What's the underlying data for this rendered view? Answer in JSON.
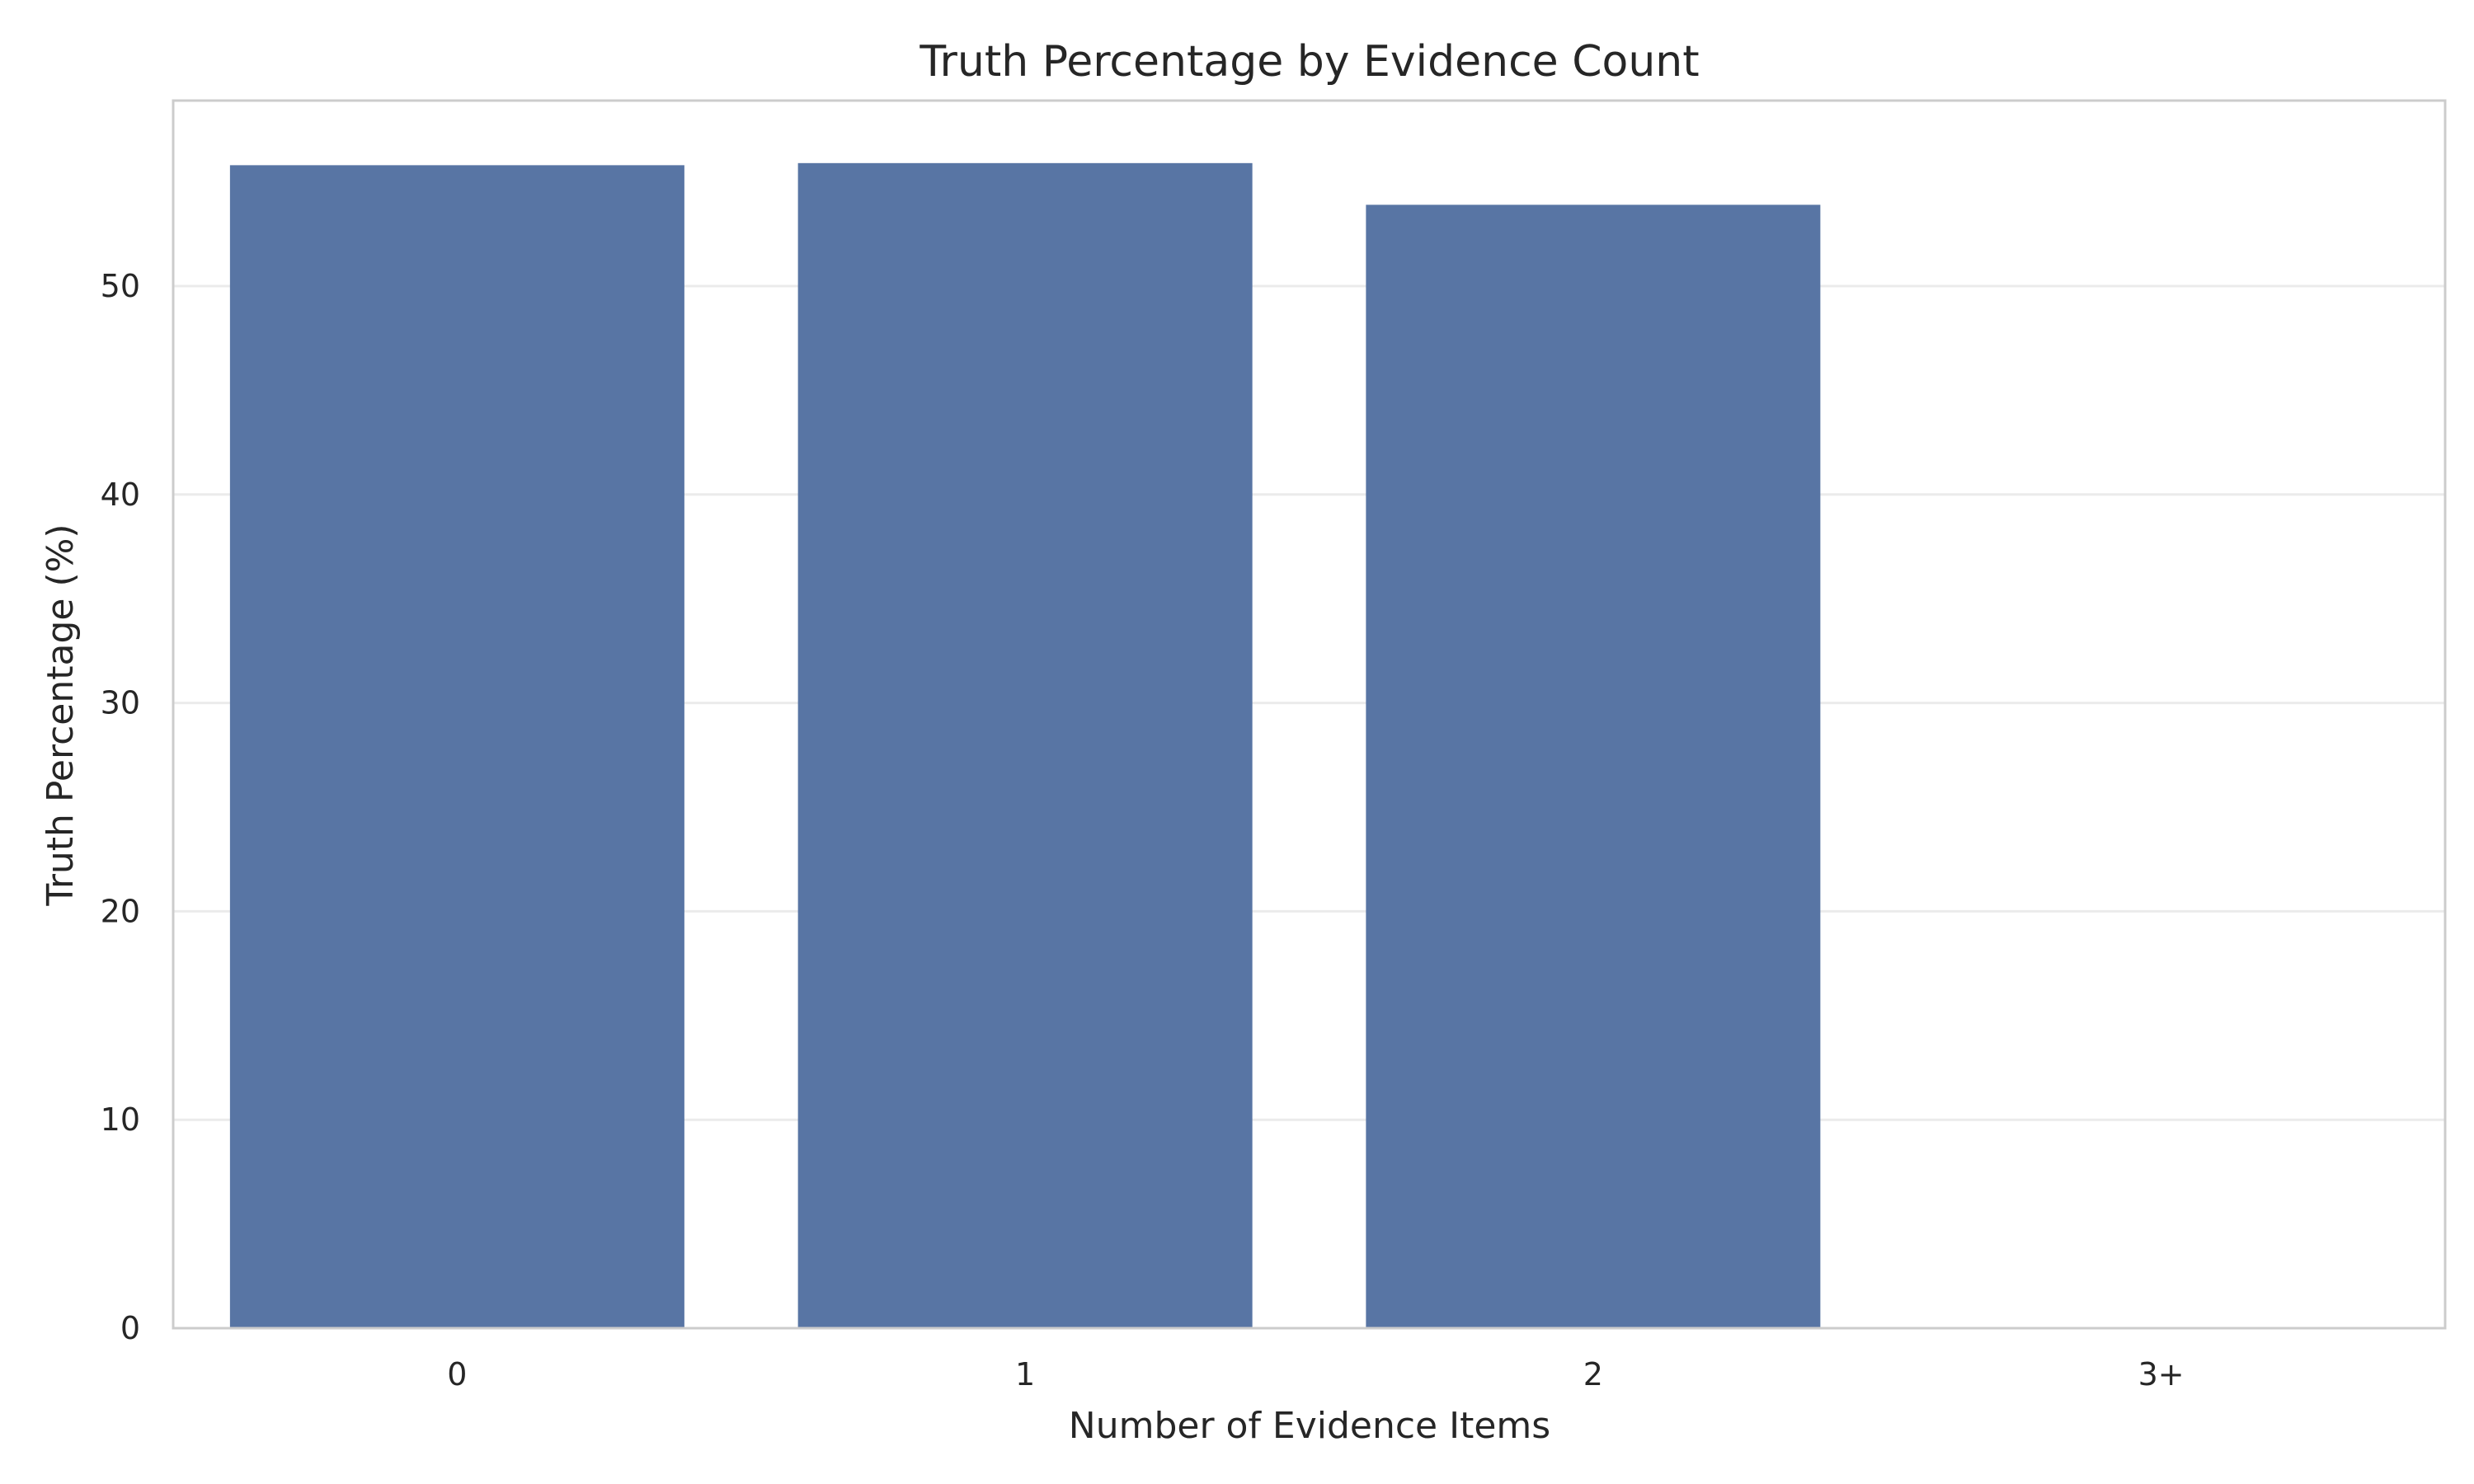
{
  "chart_data": {
    "type": "bar",
    "title": "Truth Percentage by Evidence Count",
    "xlabel": "Number of Evidence Items",
    "ylabel": "Truth Percentage (%)",
    "categories": [
      "0",
      "1",
      "2",
      "3+"
    ],
    "values": [
      55.8,
      55.9,
      53.9,
      0
    ],
    "ylim": [
      0,
      58.9
    ],
    "yticks": [
      "0",
      "10",
      "20",
      "30",
      "40",
      "50"
    ],
    "grid": "horizontal",
    "legend": "none",
    "colors": {
      "bar": "#5875a4",
      "grid": "#ebebeb",
      "frame": "#cccccc",
      "text": "#262626"
    }
  }
}
